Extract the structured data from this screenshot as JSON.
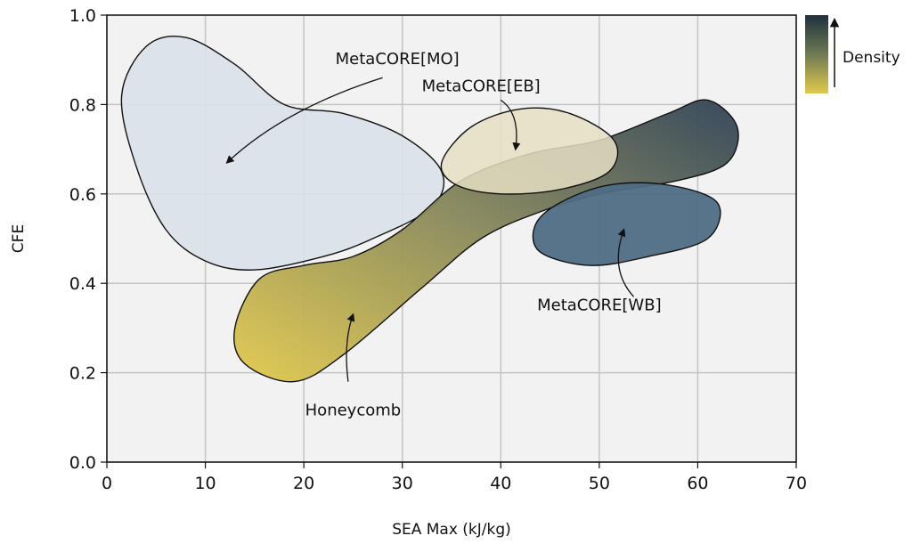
{
  "chart_data": {
    "type": "region-scatter",
    "title": "",
    "xlabel": "SEA Max (kJ/kg)",
    "ylabel": "CFE",
    "xlim": [
      0,
      70
    ],
    "ylim": [
      0,
      1.0
    ],
    "xticks": [
      "0",
      "10",
      "20",
      "30",
      "40",
      "50",
      "60",
      "70"
    ],
    "yticks": [
      "0.0",
      "0.2",
      "0.4",
      "0.6",
      "0.8",
      "1.0"
    ],
    "xtick_values": [
      0,
      10,
      20,
      30,
      40,
      50,
      60,
      70
    ],
    "ytick_values": [
      0.0,
      0.2,
      0.4,
      0.6,
      0.8,
      1.0
    ],
    "grid": true,
    "colorbar": {
      "label": "Density",
      "colors": [
        "#1f3140",
        "#6f7a52",
        "#e2c94c"
      ]
    },
    "regions": [
      {
        "name": "MetaCORE[MO]",
        "color": "#d9e1ea",
        "boundary": [
          [
            1.5,
            0.82
          ],
          [
            4,
            0.93
          ],
          [
            8,
            0.95
          ],
          [
            13,
            0.89
          ],
          [
            18,
            0.8
          ],
          [
            24,
            0.78
          ],
          [
            30,
            0.73
          ],
          [
            34,
            0.65
          ],
          [
            33,
            0.57
          ],
          [
            27,
            0.5
          ],
          [
            22,
            0.46
          ],
          [
            15,
            0.43
          ],
          [
            10,
            0.45
          ],
          [
            6,
            0.52
          ],
          [
            3,
            0.66
          ],
          [
            1.5,
            0.82
          ]
        ],
        "label_x": 29.5,
        "label_y": 0.89,
        "arrow": [
          [
            28,
            0.86
          ],
          [
            18,
            0.79
          ],
          [
            12.2,
            0.67
          ]
        ]
      },
      {
        "name": "MetaCORE[EB]",
        "color": "#e6dfc3",
        "boundary": [
          [
            34,
            0.67
          ],
          [
            37,
            0.75
          ],
          [
            42,
            0.79
          ],
          [
            47,
            0.78
          ],
          [
            51.5,
            0.72
          ],
          [
            51,
            0.65
          ],
          [
            46,
            0.61
          ],
          [
            40,
            0.6
          ],
          [
            35.5,
            0.62
          ],
          [
            34,
            0.67
          ]
        ],
        "label_x": 38,
        "label_y": 0.83,
        "arrow": [
          [
            40,
            0.81
          ],
          [
            42,
            0.78
          ],
          [
            41.5,
            0.7
          ]
        ]
      },
      {
        "name": "MetaCORE[WB]",
        "color": "#4f6d85",
        "boundary": [
          [
            43.5,
            0.53
          ],
          [
            46,
            0.58
          ],
          [
            51,
            0.62
          ],
          [
            57,
            0.62
          ],
          [
            62,
            0.58
          ],
          [
            61,
            0.5
          ],
          [
            55,
            0.46
          ],
          [
            49,
            0.44
          ],
          [
            44,
            0.47
          ],
          [
            43.5,
            0.53
          ]
        ],
        "label_x": 50,
        "label_y": 0.34,
        "arrow": [
          [
            53.5,
            0.37
          ],
          [
            51,
            0.43
          ],
          [
            52.5,
            0.52
          ]
        ]
      },
      {
        "name": "Honeycomb",
        "color": "#c7b553",
        "boundary": [
          [
            13,
            0.3
          ],
          [
            15.5,
            0.41
          ],
          [
            20,
            0.44
          ],
          [
            25,
            0.46
          ],
          [
            30,
            0.52
          ],
          [
            36,
            0.63
          ],
          [
            43,
            0.69
          ],
          [
            50,
            0.72
          ],
          [
            57,
            0.78
          ],
          [
            61,
            0.81
          ],
          [
            64,
            0.75
          ],
          [
            63,
            0.67
          ],
          [
            58,
            0.63
          ],
          [
            50,
            0.6
          ],
          [
            44,
            0.56
          ],
          [
            38,
            0.5
          ],
          [
            32,
            0.39
          ],
          [
            24,
            0.24
          ],
          [
            19,
            0.18
          ],
          [
            14,
            0.22
          ],
          [
            13,
            0.3
          ]
        ],
        "label_x": 25,
        "label_y": 0.105,
        "arrow": [
          [
            24.5,
            0.18
          ],
          [
            24,
            0.27
          ],
          [
            25,
            0.33
          ]
        ]
      }
    ]
  }
}
